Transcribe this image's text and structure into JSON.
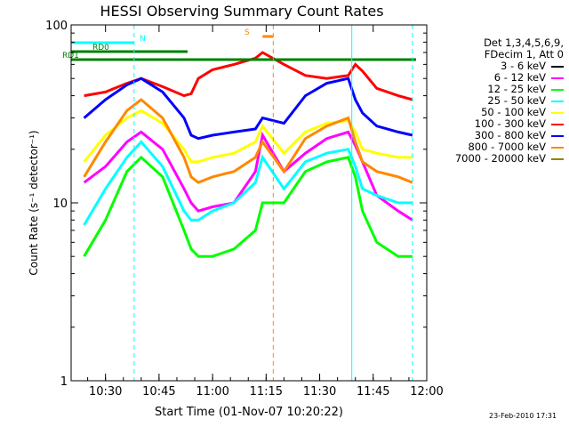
{
  "chart_data": {
    "type": "line",
    "title": "HESSI Observing Summary Count Rates",
    "xlabel": "Start Time (01-Nov-07 10:20:22)",
    "ylabel": "Count Rate (s⁻¹ detector⁻¹)",
    "xlim": [
      "10:20:22",
      "12:00"
    ],
    "ylim": [
      1,
      100
    ],
    "yscale": "log",
    "x_ticks": [
      "10:30",
      "10:45",
      "11:00",
      "11:15",
      "11:30",
      "11:45",
      "12:00"
    ],
    "y_ticks": [
      "1",
      "10",
      "100"
    ],
    "legend_header": [
      "Det 1,3,4,5,6,9,",
      "FDecim 1, Att 0"
    ],
    "legend_position": "right",
    "x": [
      "10:24",
      "10:30",
      "10:36",
      "10:40",
      "10:46",
      "10:52",
      "10:54",
      "10:56",
      "11:00",
      "11:06",
      "11:12",
      "11:14",
      "11:20",
      "11:26",
      "11:32",
      "11:38",
      "11:40",
      "11:42",
      "11:46",
      "11:52",
      "11:56"
    ],
    "series": [
      {
        "name": "3 - 6 keV",
        "color": "#000000",
        "values": [
          null,
          null,
          null,
          null,
          null,
          null,
          null,
          null,
          null,
          null,
          null,
          null,
          null,
          null,
          null,
          null,
          null,
          null,
          null,
          null,
          null
        ]
      },
      {
        "name": "6 - 12 keV",
        "color": "#ff00ff",
        "values": [
          13,
          16,
          22,
          25,
          20,
          12,
          10,
          9,
          9.5,
          10,
          15,
          24,
          15,
          19,
          23,
          25,
          21,
          17,
          11,
          9,
          8
        ]
      },
      {
        "name": "12 - 25 keV",
        "color": "#00ff00",
        "values": [
          5,
          8,
          15,
          18,
          14,
          7,
          5.5,
          5,
          5,
          5.5,
          7,
          10,
          10,
          15,
          17,
          18,
          14,
          9,
          6,
          5,
          5
        ]
      },
      {
        "name": "25 - 50 keV",
        "color": "#00ffff",
        "values": [
          7.5,
          12,
          18,
          22,
          16,
          9,
          8,
          8,
          9,
          10,
          13,
          18,
          12,
          17,
          19,
          20,
          16,
          12,
          11,
          10,
          10
        ]
      },
      {
        "name": "50 - 100 keV",
        "color": "#ffff00",
        "values": [
          17,
          24,
          30,
          33,
          28,
          20,
          17,
          17,
          18,
          19,
          22,
          27,
          19,
          25,
          28,
          29,
          25,
          20,
          19,
          18,
          18
        ]
      },
      {
        "name": "100 - 300 keV",
        "color": "#ff0000",
        "values": [
          40,
          42,
          47,
          50,
          45,
          40,
          41,
          50,
          56,
          60,
          65,
          70,
          60,
          52,
          50,
          52,
          60,
          55,
          44,
          40,
          38
        ]
      },
      {
        "name": "300 - 800 keV",
        "color": "#0000ff",
        "values": [
          30,
          38,
          46,
          50,
          42,
          30,
          24,
          23,
          24,
          25,
          26,
          30,
          28,
          40,
          47,
          50,
          38,
          32,
          27,
          25,
          24
        ]
      },
      {
        "name": "800 - 7000 keV",
        "color": "#ff8800",
        "values": [
          14,
          22,
          33,
          38,
          30,
          18,
          14,
          13,
          14,
          15,
          18,
          22,
          15,
          23,
          27,
          30,
          22,
          17,
          15,
          14,
          13
        ]
      },
      {
        "name": "7000 - 20000 keV",
        "color": "#888800",
        "values": [
          null,
          null,
          null,
          null,
          null,
          null,
          null,
          null,
          null,
          null,
          null,
          null,
          null,
          null,
          null,
          null,
          null,
          null,
          null,
          null,
          null
        ]
      }
    ],
    "annotations": [
      {
        "label": "N",
        "color": "#00ffff",
        "bar_x": [
          "10:20:22",
          "10:38"
        ]
      },
      {
        "label": "RD0",
        "color": "#008000",
        "bar_x": [
          "10:20:22",
          "10:53"
        ]
      },
      {
        "label": "RD1",
        "color": "#008000",
        "bar_x": [
          "10:20:22",
          "11:57"
        ]
      },
      {
        "label": "S",
        "color": "#ff8800",
        "bar_x": [
          "11:14",
          "11:17"
        ]
      }
    ],
    "vlines": [
      {
        "x": "10:38",
        "color": "#00ffff",
        "style": "dashed"
      },
      {
        "x": "11:17",
        "color": "#ff8800",
        "style": "dashed"
      },
      {
        "x": "11:39",
        "color": "#00ffff",
        "style": "solid"
      },
      {
        "x": "11:56",
        "color": "#00ffff",
        "style": "dashed"
      }
    ]
  },
  "footer": {
    "timestamp": "23-Feb-2010 17:31"
  }
}
